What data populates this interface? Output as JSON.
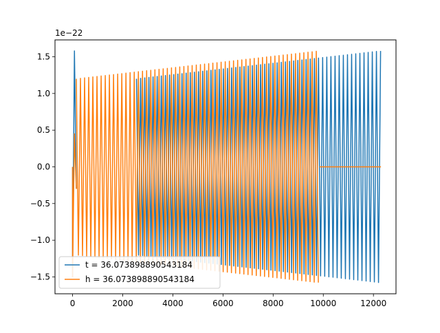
{
  "chart_data": {
    "type": "line",
    "title": "",
    "xlabel": "",
    "ylabel": "",
    "offset_text": "1e−22",
    "xlim": [
      -700,
      12900
    ],
    "ylim": [
      -1.73,
      1.73
    ],
    "x_ticks": [
      0,
      2000,
      4000,
      6000,
      8000,
      10000,
      12000
    ],
    "x_tick_labels": [
      "0",
      "2000",
      "4000",
      "6000",
      "8000",
      "10000",
      "12000"
    ],
    "y_ticks": [
      -1.5,
      -1.0,
      -0.5,
      0.0,
      0.5,
      1.0,
      1.5
    ],
    "y_tick_labels": [
      "−1.5",
      "−1.0",
      "−0.5",
      "0.0",
      "0.5",
      "1.0",
      "1.5"
    ],
    "grid": false,
    "legend_location": "lower-left",
    "series": [
      {
        "name": "t = 36.073898890543184",
        "color": "#1f77b4",
        "description_points": {
          "segments": [
            {
              "x_start": 0,
              "x_end": 150,
              "kind": "spike",
              "peak": 1.58,
              "trough": -1.5
            },
            {
              "x_start": 2550,
              "x_end": 12300,
              "kind": "oscillation",
              "amp_start": 1.2,
              "amp_end": 1.58,
              "period": 165
            }
          ]
        }
      },
      {
        "name": "h = 36.073898890543184",
        "color": "#ff7f0e",
        "description_points": {
          "segments": [
            {
              "x_start": 0,
              "x_end": 150,
              "kind": "spike",
              "peak": 0.45,
              "trough": -1.5
            },
            {
              "x_start": 150,
              "x_end": 9850,
              "kind": "oscillation",
              "amp_start": 1.2,
              "amp_end": 1.58,
              "period": 165
            },
            {
              "x_start": 9850,
              "x_end": 12300,
              "kind": "flat",
              "value": 0.0
            }
          ]
        }
      }
    ]
  }
}
